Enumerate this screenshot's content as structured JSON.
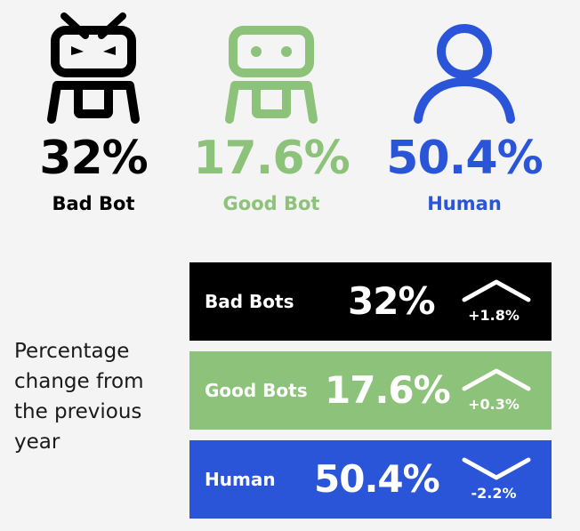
{
  "colors": {
    "bad_bot": "#000000",
    "good_bot": "#8dc27a",
    "human": "#2b55d9"
  },
  "top": [
    {
      "key": "bad_bot",
      "icon": "bad-bot-icon",
      "pct": "32%",
      "label": "Bad Bot"
    },
    {
      "key": "good_bot",
      "icon": "good-bot-icon",
      "pct": "17.6%",
      "label": "Good Bot"
    },
    {
      "key": "human",
      "icon": "human-icon",
      "pct": "50.4%",
      "label": "Human"
    }
  ],
  "caption": "Percentage change from the previous year",
  "bars": [
    {
      "key": "bad_bot",
      "label": "Bad Bots",
      "pct": "32%",
      "change": "+1.8%",
      "direction": "up",
      "arrow_icon": "arrow-up-icon"
    },
    {
      "key": "good_bot",
      "label": "Good Bots",
      "pct": "17.6%",
      "change": "+0.3%",
      "direction": "up",
      "arrow_icon": "arrow-up-icon"
    },
    {
      "key": "human",
      "label": "Human",
      "pct": "50.4%",
      "change": "-2.2%",
      "direction": "down",
      "arrow_icon": "arrow-down-icon"
    }
  ],
  "chart_data": {
    "type": "bar",
    "categories": [
      "Bad Bots",
      "Good Bots",
      "Human"
    ],
    "values": [
      32,
      17.6,
      50.4
    ],
    "changes": [
      1.8,
      0.3,
      -2.2
    ],
    "unit": "%"
  }
}
